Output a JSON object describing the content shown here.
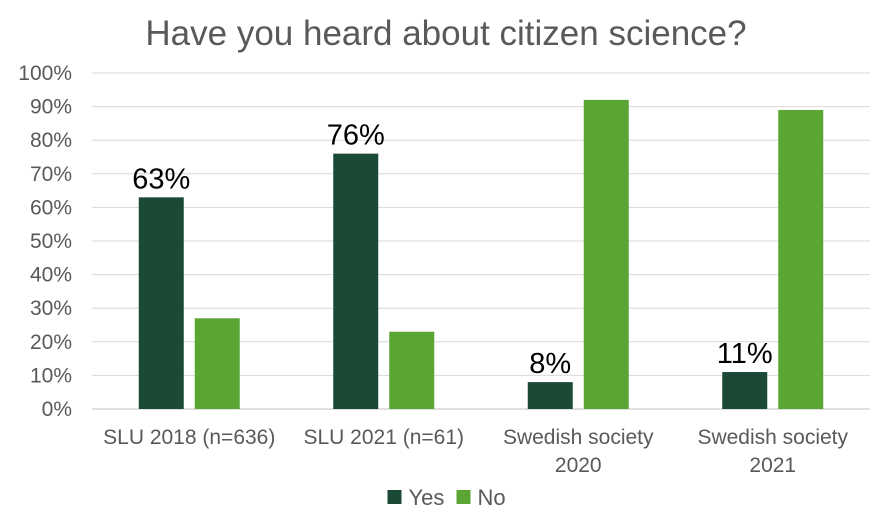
{
  "chart_data": {
    "type": "bar",
    "title": "Have you heard about citizen science?",
    "categories": [
      [
        "SLU 2018 (n=636)"
      ],
      [
        "SLU 2021 (n=61)"
      ],
      [
        "Swedish society",
        "2020"
      ],
      [
        "Swedish society",
        "2021"
      ]
    ],
    "series": [
      {
        "name": "Yes",
        "color": "#1a4a35",
        "values": [
          63,
          76,
          8,
          11
        ],
        "labels": [
          "63%",
          "76%",
          "8%",
          "11%"
        ]
      },
      {
        "name": "No",
        "color": "#5aa534",
        "values": [
          27,
          23,
          92,
          89
        ],
        "labels": []
      }
    ],
    "ylim": [
      0,
      100
    ],
    "yticks": [
      "0%",
      "10%",
      "20%",
      "30%",
      "40%",
      "50%",
      "60%",
      "70%",
      "80%",
      "90%",
      "100%"
    ],
    "grid": true,
    "legend_position": "bottom"
  }
}
